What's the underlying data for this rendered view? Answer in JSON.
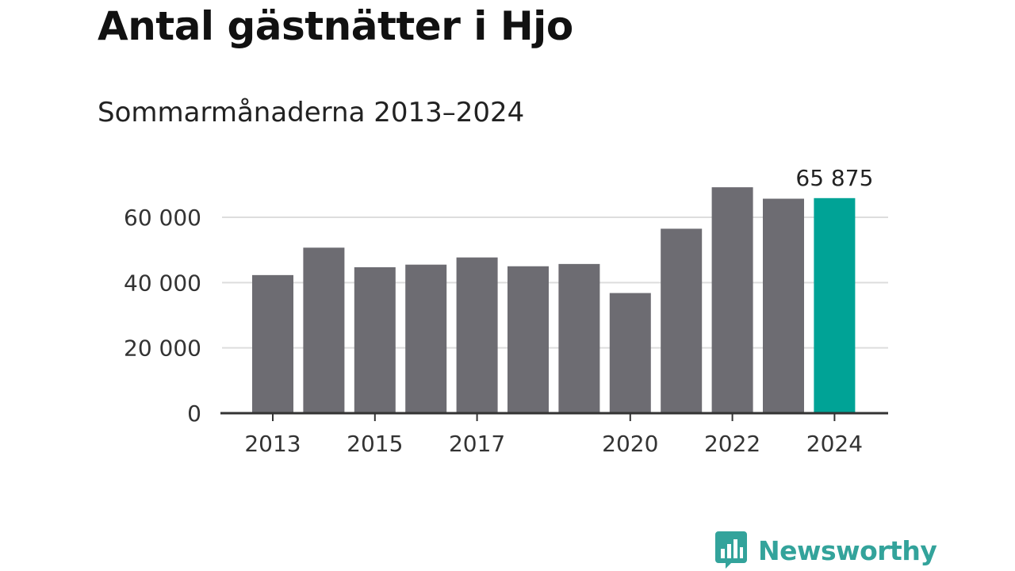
{
  "title": "Antal gästnätter i Hjo",
  "subtitle": "Sommarmånaderna 2013–2024",
  "brand": {
    "name": "Newsworthy",
    "color": "#33a39b",
    "icon": "newsworthy-logo-icon"
  },
  "colors": {
    "bar": "#6d6c72",
    "highlight": "#00a396"
  },
  "chart_data": {
    "type": "bar",
    "categories": [
      "2013",
      "2014",
      "2015",
      "2016",
      "2017",
      "2018",
      "2019",
      "2020",
      "2021",
      "2022",
      "2023",
      "2024"
    ],
    "values": [
      42300,
      50700,
      44700,
      45500,
      47700,
      45000,
      45700,
      36800,
      56500,
      69200,
      65700,
      65875
    ],
    "highlight_index": 11,
    "data_label": "65 875",
    "x_tick_labels": [
      "2013",
      "2015",
      "2017",
      "2020",
      "2022",
      "2024"
    ],
    "y_ticks": [
      0,
      20000,
      40000,
      60000
    ],
    "y_tick_labels": [
      "0",
      "20 000",
      "40 000",
      "60 000"
    ],
    "ylim": [
      0,
      72000
    ],
    "grid": true,
    "xlabel": "",
    "ylabel": ""
  }
}
